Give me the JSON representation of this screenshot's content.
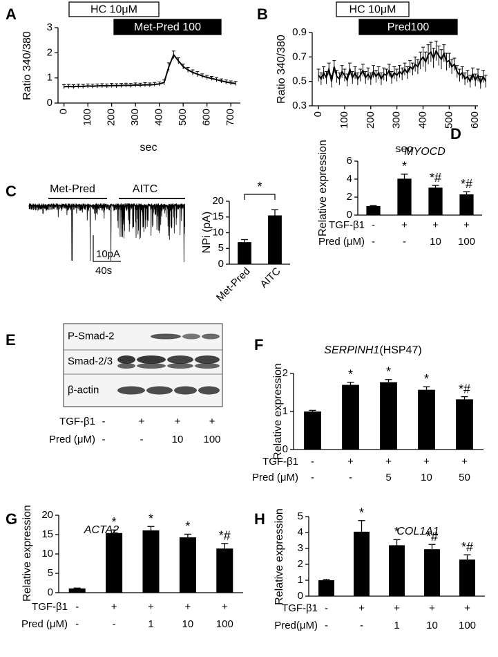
{
  "chart_data": [
    {
      "type": "line",
      "panel": "A",
      "ylabel": "Ratio 340/380",
      "xlabel": "sec",
      "color": "#000000",
      "annotations": [
        {
          "text": "HC 10μM",
          "style": "open"
        },
        {
          "text": "Met-Pred 100",
          "style": "filled"
        }
      ],
      "xlim": [
        -25,
        740
      ],
      "xticks": [
        0,
        100,
        200,
        300,
        400,
        500,
        600,
        700
      ],
      "ylim": [
        0,
        3
      ],
      "yticks": [
        0,
        1,
        2,
        3
      ],
      "x": [
        0,
        20,
        40,
        60,
        80,
        100,
        120,
        140,
        160,
        180,
        200,
        220,
        240,
        260,
        280,
        300,
        320,
        340,
        360,
        380,
        400,
        420,
        440,
        460,
        480,
        500,
        520,
        540,
        560,
        580,
        600,
        620,
        640,
        660,
        680,
        700,
        720
      ],
      "values": [
        0.65,
        0.66,
        0.65,
        0.67,
        0.66,
        0.68,
        0.67,
        0.68,
        0.69,
        0.68,
        0.7,
        0.69,
        0.7,
        0.71,
        0.7,
        0.72,
        0.71,
        0.73,
        0.72,
        0.74,
        0.76,
        0.82,
        1.45,
        1.92,
        1.68,
        1.45,
        1.32,
        1.22,
        1.15,
        1.08,
        1.02,
        0.98,
        0.93,
        0.88,
        0.84,
        0.8,
        0.78
      ],
      "errors": [
        0.08,
        0.08,
        0.08,
        0.08,
        0.08,
        0.08,
        0.08,
        0.08,
        0.08,
        0.08,
        0.08,
        0.08,
        0.08,
        0.08,
        0.08,
        0.08,
        0.08,
        0.08,
        0.08,
        0.08,
        0.08,
        0.1,
        0.15,
        0.15,
        0.12,
        0.1,
        0.1,
        0.1,
        0.1,
        0.08,
        0.08,
        0.08,
        0.08,
        0.08,
        0.08,
        0.08,
        0.08
      ]
    },
    {
      "type": "line",
      "panel": "B",
      "ylabel": "Ratio 340/380",
      "xlabel": "sec",
      "color": "#000000",
      "annotations": [
        {
          "text": "HC 10μM",
          "style": "open"
        },
        {
          "text": "Pred100",
          "style": "filled"
        }
      ],
      "xlim": [
        -24,
        610
      ],
      "xticks": [
        0,
        100,
        200,
        300,
        400,
        500,
        600
      ],
      "ylim": [
        0.3,
        0.9
      ],
      "yticks": [
        0.3,
        0.5,
        0.7,
        0.9
      ],
      "x": [
        0,
        10,
        20,
        30,
        40,
        50,
        60,
        70,
        80,
        90,
        100,
        110,
        120,
        130,
        140,
        150,
        160,
        170,
        180,
        190,
        200,
        210,
        220,
        230,
        240,
        250,
        260,
        270,
        280,
        290,
        300,
        310,
        320,
        330,
        340,
        350,
        360,
        370,
        380,
        390,
        400,
        410,
        420,
        430,
        440,
        450,
        460,
        470,
        480,
        490,
        500,
        510,
        520,
        530,
        540,
        550,
        560,
        570,
        580,
        590,
        600,
        610,
        620,
        630,
        640
      ],
      "values": [
        0.55,
        0.52,
        0.57,
        0.53,
        0.6,
        0.5,
        0.62,
        0.54,
        0.52,
        0.58,
        0.55,
        0.51,
        0.6,
        0.53,
        0.57,
        0.52,
        0.55,
        0.59,
        0.53,
        0.56,
        0.52,
        0.58,
        0.54,
        0.57,
        0.52,
        0.56,
        0.55,
        0.59,
        0.53,
        0.57,
        0.55,
        0.58,
        0.56,
        0.6,
        0.57,
        0.62,
        0.6,
        0.64,
        0.62,
        0.67,
        0.7,
        0.66,
        0.72,
        0.74,
        0.69,
        0.75,
        0.71,
        0.68,
        0.73,
        0.66,
        0.67,
        0.62,
        0.64,
        0.58,
        0.55,
        0.57,
        0.52,
        0.54,
        0.5,
        0.56,
        0.51,
        0.55,
        0.49,
        0.54,
        0.5
      ],
      "errors": [
        0.05,
        0.05,
        0.05,
        0.05,
        0.05,
        0.05,
        0.05,
        0.05,
        0.05,
        0.05,
        0.05,
        0.05,
        0.05,
        0.05,
        0.05,
        0.05,
        0.05,
        0.05,
        0.05,
        0.05,
        0.05,
        0.05,
        0.05,
        0.05,
        0.05,
        0.05,
        0.05,
        0.05,
        0.05,
        0.05,
        0.05,
        0.05,
        0.05,
        0.05,
        0.05,
        0.05,
        0.05,
        0.06,
        0.06,
        0.07,
        0.08,
        0.08,
        0.08,
        0.08,
        0.08,
        0.08,
        0.08,
        0.08,
        0.07,
        0.07,
        0.06,
        0.06,
        0.05,
        0.05,
        0.05,
        0.05,
        0.05,
        0.05,
        0.05,
        0.05,
        0.05,
        0.05,
        0.05,
        0.05,
        0.05
      ]
    },
    {
      "type": "trace",
      "panel": "C",
      "annotations": [
        {
          "text": "Met-Pred"
        },
        {
          "text": "AITC"
        }
      ],
      "scale_y": "10pA",
      "scale_x": "40s"
    },
    {
      "type": "bar",
      "ylabel": "NPi (pA)",
      "color": "#000000",
      "categories": [
        "Met-Pred",
        "AITC"
      ],
      "values": [
        7,
        15.5
      ],
      "errors": [
        0.8,
        1.8
      ],
      "significance": "*",
      "ylim": [
        0,
        20
      ],
      "yticks": [
        0,
        5,
        10,
        15,
        20
      ]
    },
    {
      "type": "bar",
      "panel": "D",
      "title": "MYOCD",
      "ylabel": "Relative expression",
      "color": "#000000",
      "values": [
        1,
        4.05,
        3.05,
        2.3
      ],
      "errors": [
        0.05,
        0.5,
        0.25,
        0.3
      ],
      "markers": [
        null,
        "*",
        "*#",
        "*#"
      ],
      "conditions": [
        {
          "name": "TGF-β1",
          "values": [
            "-",
            "+",
            "+",
            "+"
          ]
        },
        {
          "name": "Pred (μM)",
          "values": [
            "-",
            "-",
            "10",
            "100"
          ]
        }
      ],
      "ylim": [
        0,
        6
      ],
      "yticks": [
        0,
        2,
        4,
        6
      ]
    },
    {
      "type": "blot",
      "panel": "E",
      "rows": [
        "P-Smad-2",
        "Smad-2/3",
        "β-actin"
      ],
      "conditions": [
        {
          "name": "TGF-β1",
          "values": [
            "-",
            "+",
            "+",
            "+"
          ]
        },
        {
          "name": "Pred (μM)",
          "values": [
            "-",
            "-",
            "10",
            "100"
          ]
        }
      ]
    },
    {
      "type": "bar",
      "panel": "F",
      "title": "SERPINH1",
      "title_suffix": "(HSP47)",
      "ylabel": "Relative expression",
      "color": "#000000",
      "values": [
        1,
        1.7,
        1.77,
        1.57,
        1.32
      ],
      "errors": [
        0.03,
        0.07,
        0.07,
        0.08,
        0.07
      ],
      "markers": [
        null,
        "*",
        "*",
        "*",
        "*#"
      ],
      "conditions": [
        {
          "name": "TGF-β1",
          "values": [
            "-",
            "+",
            "+",
            "+",
            "+"
          ]
        },
        {
          "name": "Pred (μM)",
          "values": [
            "-",
            "-",
            "5",
            "10",
            "50"
          ]
        }
      ],
      "ylim": [
        0,
        2
      ],
      "yticks": [
        0,
        1,
        2
      ]
    },
    {
      "type": "bar",
      "panel": "G",
      "title": "ACTA2",
      "ylabel": "Relative expression",
      "color": "#000000",
      "values": [
        1.1,
        15.4,
        16.1,
        14.3,
        11.4
      ],
      "errors": [
        0.1,
        0.8,
        1.0,
        0.8,
        1.3
      ],
      "markers": [
        null,
        "*",
        "*",
        "*",
        "*#"
      ],
      "conditions": [
        {
          "name": "TGF-β1",
          "values": [
            "-",
            "+",
            "+",
            "+",
            "+"
          ]
        },
        {
          "name": "Pred (μM)",
          "values": [
            "-",
            "-",
            "1",
            "10",
            "100"
          ]
        }
      ],
      "ylim": [
        0,
        20
      ],
      "yticks": [
        0,
        5,
        10,
        15,
        20
      ]
    },
    {
      "type": "bar",
      "panel": "H",
      "title": "COL1A1",
      "ylabel": "Relative expression",
      "color": "#000000",
      "values": [
        1,
        4.05,
        3.2,
        2.95,
        2.3
      ],
      "errors": [
        0.05,
        0.7,
        0.35,
        0.3,
        0.3
      ],
      "markers": [
        null,
        "*",
        "*",
        "*#",
        "*#"
      ],
      "conditions": [
        {
          "name": "TGF-β1",
          "values": [
            "-",
            "+",
            "+",
            "+",
            "+"
          ]
        },
        {
          "name": "Pred(μM)",
          "values": [
            "-",
            "-",
            "1",
            "10",
            "100"
          ]
        }
      ],
      "ylim": [
        0,
        5
      ],
      "yticks": [
        0,
        1,
        2,
        3,
        4,
        5
      ]
    }
  ]
}
